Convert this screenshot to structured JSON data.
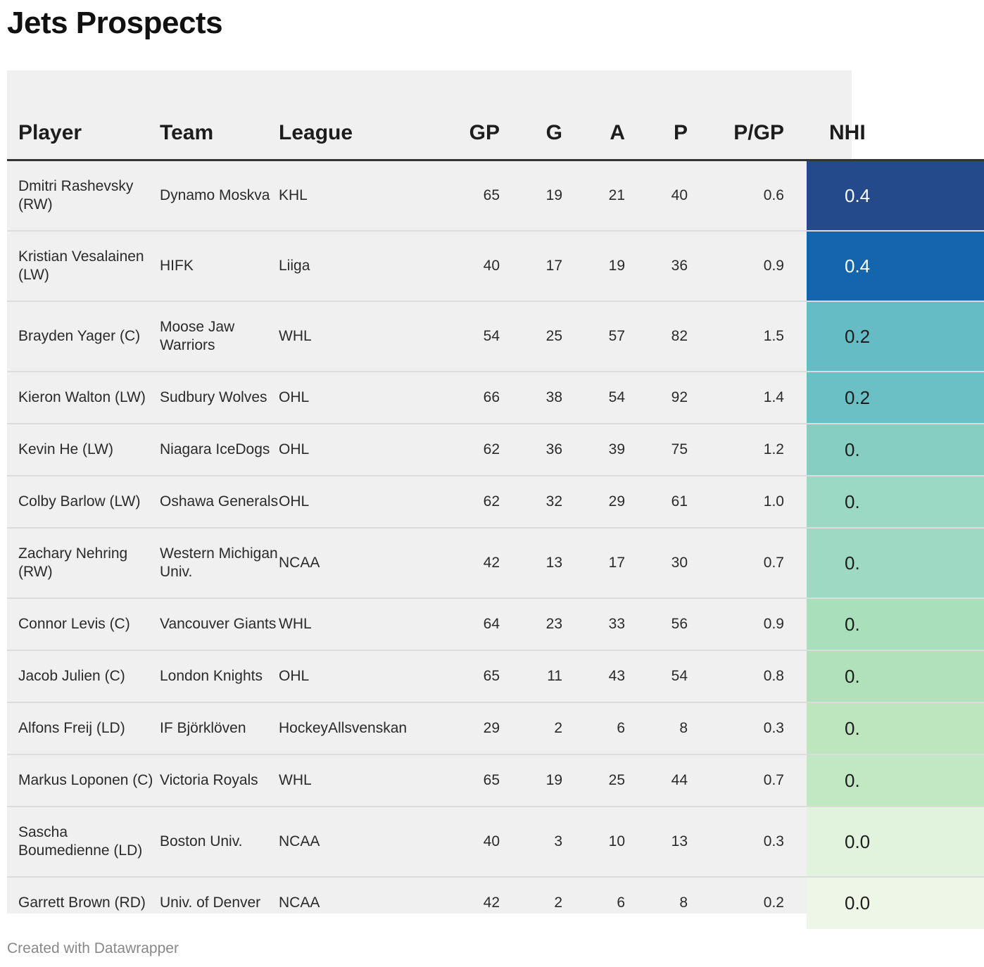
{
  "title": "Jets Prospects",
  "columns": [
    "Player",
    "Team",
    "League",
    "GP",
    "G",
    "A",
    "P",
    "P/GP",
    "NHI"
  ],
  "rows": [
    {
      "player": "Dmitri Rashevsky (RW)",
      "team": "Dynamo Moskva",
      "league": "KHL",
      "gp": "65",
      "g": "19",
      "a": "21",
      "p": "40",
      "pgp": "0.6",
      "nhl": "0.4",
      "nhl_bg": "#254a8c",
      "nhl_fg": "#ffffff",
      "h": 100
    },
    {
      "player": "Kristian Vesalainen (LW)",
      "team": "HIFK",
      "league": "Liiga",
      "gp": "40",
      "g": "17",
      "a": "19",
      "p": "36",
      "pgp": "0.9",
      "nhl": "0.4",
      "nhl_bg": "#1565ad",
      "nhl_fg": "#ffffff",
      "h": 100
    },
    {
      "player": "Brayden Yager (C)",
      "team": "Moose Jaw Warriors",
      "league": "WHL",
      "gp": "54",
      "g": "25",
      "a": "57",
      "p": "82",
      "pgp": "1.5",
      "nhl": "0.2",
      "nhl_bg": "#66bcc4",
      "nhl_fg": "#1d1d1d",
      "h": 100
    },
    {
      "player": "Kieron Walton (LW)",
      "team": "Sudbury Wolves",
      "league": "OHL",
      "gp": "66",
      "g": "38",
      "a": "54",
      "p": "92",
      "pgp": "1.4",
      "nhl": "0.2",
      "nhl_bg": "#6ac0c4",
      "nhl_fg": "#1d1d1d",
      "h": 74
    },
    {
      "player": "Kevin He (LW)",
      "team": "Niagara IceDogs",
      "league": "OHL",
      "gp": "62",
      "g": "36",
      "a": "39",
      "p": "75",
      "pgp": "1.2",
      "nhl": "0.",
      "nhl_bg": "#86cec2",
      "nhl_fg": "#1d1d1d",
      "h": 74
    },
    {
      "player": "Colby Barlow (LW)",
      "team": "Oshawa Generals",
      "league": "OHL",
      "gp": "62",
      "g": "32",
      "a": "29",
      "p": "61",
      "pgp": "1.0",
      "nhl": "0.",
      "nhl_bg": "#9cd9c4",
      "nhl_fg": "#1d1d1d",
      "h": 74
    },
    {
      "player": "Zachary Nehring (RW)",
      "team": "Western Michigan Univ.",
      "league": "NCAA",
      "gp": "42",
      "g": "13",
      "a": "17",
      "p": "30",
      "pgp": "0.7",
      "nhl": "0.",
      "nhl_bg": "#9ed9c3",
      "nhl_fg": "#1d1d1d",
      "h": 100
    },
    {
      "player": "Connor Levis (C)",
      "team": "Vancouver Giants",
      "league": "WHL",
      "gp": "64",
      "g": "23",
      "a": "33",
      "p": "56",
      "pgp": "0.9",
      "nhl": "0.",
      "nhl_bg": "#aadfbb",
      "nhl_fg": "#1d1d1d",
      "h": 74
    },
    {
      "player": "Jacob Julien (C)",
      "team": "London Knights",
      "league": "OHL",
      "gp": "65",
      "g": "11",
      "a": "43",
      "p": "54",
      "pgp": "0.8",
      "nhl": "0.",
      "nhl_bg": "#b0e1bb",
      "nhl_fg": "#1d1d1d",
      "h": 74
    },
    {
      "player": "Alfons Freij (LD)",
      "team": "IF Björklöven",
      "league": "HockeyAllsvenskan",
      "gp": "29",
      "g": "2",
      "a": "6",
      "p": "8",
      "pgp": "0.3",
      "nhl": "0.",
      "nhl_bg": "#bde6bf",
      "nhl_fg": "#1d1d1d",
      "h": 74
    },
    {
      "player": "Markus Loponen (C)",
      "team": "Victoria Royals",
      "league": "WHL",
      "gp": "65",
      "g": "19",
      "a": "25",
      "p": "44",
      "pgp": "0.7",
      "nhl": "0.",
      "nhl_bg": "#c2e8c3",
      "nhl_fg": "#1d1d1d",
      "h": 74
    },
    {
      "player": "Sascha Boumedienne (LD)",
      "team": "Boston Univ.",
      "league": "NCAA",
      "gp": "40",
      "g": "3",
      "a": "10",
      "p": "13",
      "pgp": "0.3",
      "nhl": "0.0",
      "nhl_bg": "#e1f2dd",
      "nhl_fg": "#1d1d1d",
      "h": 100
    },
    {
      "player": "Garrett Brown (RD)",
      "team": "Univ. of Denver",
      "league": "NCAA",
      "gp": "42",
      "g": "2",
      "a": "6",
      "p": "8",
      "pgp": "0.2",
      "nhl": "0.0",
      "nhl_bg": "#eef7e7",
      "nhl_fg": "#1d1d1d",
      "h": 74
    }
  ],
  "footer": "Created with Datawrapper"
}
